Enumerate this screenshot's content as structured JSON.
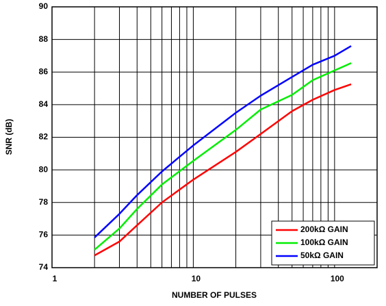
{
  "chart_data": {
    "type": "line",
    "x_label": "NUMBER OF PULSES",
    "y_label": "SNR (dB)",
    "x": [
      2,
      3,
      4,
      6,
      10,
      20,
      30,
      50,
      70,
      100,
      131
    ],
    "series": [
      {
        "name": "200kΩ GAIN",
        "color": "#ff0000",
        "values": [
          74.75,
          75.6,
          76.6,
          78.0,
          79.4,
          81.1,
          82.2,
          83.6,
          84.3,
          84.9,
          85.25
        ]
      },
      {
        "name": "100kΩ GAIN",
        "color": "#00ee00",
        "values": [
          75.1,
          76.4,
          77.6,
          79.1,
          80.55,
          82.45,
          83.7,
          84.6,
          85.5,
          86.1,
          86.55
        ]
      },
      {
        "name": "50kΩ GAIN",
        "color": "#0000ff",
        "values": [
          75.85,
          77.3,
          78.45,
          79.9,
          81.5,
          83.5,
          84.55,
          85.7,
          86.45,
          87.0,
          87.6
        ]
      }
    ],
    "xlim": [
      1,
      200
    ],
    "xticks": [
      1,
      10,
      100
    ],
    "x_log": true,
    "ylim": [
      74,
      90
    ],
    "yticks": [
      74,
      76,
      78,
      80,
      82,
      84,
      86,
      88,
      90
    ],
    "grid": true,
    "legend": "lower right"
  }
}
